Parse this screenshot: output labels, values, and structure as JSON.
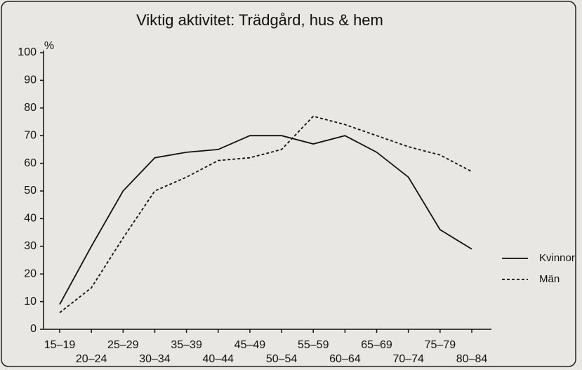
{
  "chart_data": {
    "type": "line",
    "title": "Viktig aktivitet: Trädgård, hus & hem",
    "ylabel": "%",
    "categories": [
      "15–19",
      "20–24",
      "25–29",
      "30–34",
      "35–39",
      "40–44",
      "45–49",
      "50–54",
      "55–59",
      "60–64",
      "65–69",
      "70–74",
      "75–79",
      "80–84"
    ],
    "series": [
      {
        "name": "Kvinnor",
        "color": "#111111",
        "style": "solid",
        "values": [
          9,
          30,
          50,
          62,
          64,
          65,
          70,
          70,
          67,
          70,
          64,
          55,
          36,
          29
        ]
      },
      {
        "name": "Män",
        "color": "#111111",
        "style": "dotted",
        "values": [
          6,
          15,
          33,
          50,
          55,
          61,
          62,
          65,
          77,
          74,
          70,
          66,
          63,
          57
        ]
      }
    ],
    "ylim": [
      0,
      100
    ],
    "yticks": [
      0,
      10,
      20,
      30,
      40,
      50,
      60,
      70,
      80,
      90,
      100
    ],
    "grid": false,
    "legend": "right"
  }
}
